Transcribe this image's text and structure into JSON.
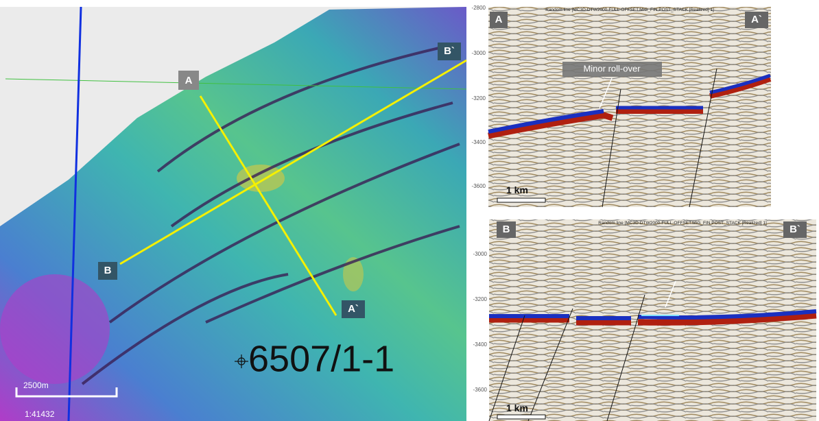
{
  "map": {
    "labels": {
      "a": "A",
      "a_end": "A`",
      "b": "B",
      "b_end": "B`"
    },
    "well": "6507/1-1",
    "scale_bar": "2500m",
    "scale": "1:41432"
  },
  "sections": [
    {
      "title": "Random line [MC3D-DTW2000-FULL-OFFSET.MIG_FIN.POST_STACK [Realized] 1]",
      "start": "A",
      "end": "A`",
      "annotation": "Minor roll-over",
      "scale_bar": "1 km",
      "depth_labels": [
        "-2800",
        "-3000",
        "-3200",
        "-3400",
        "-3600"
      ]
    },
    {
      "title": "Random line [MC3D-DTW2000-FULL-OFFSET.MIG_FIN.POST_STACK [Realized] 1]",
      "start": "B",
      "end": "B`",
      "scale_bar": "1 km",
      "depth_labels": [
        "-3000",
        "-3200",
        "-3400",
        "-3600"
      ]
    }
  ]
}
